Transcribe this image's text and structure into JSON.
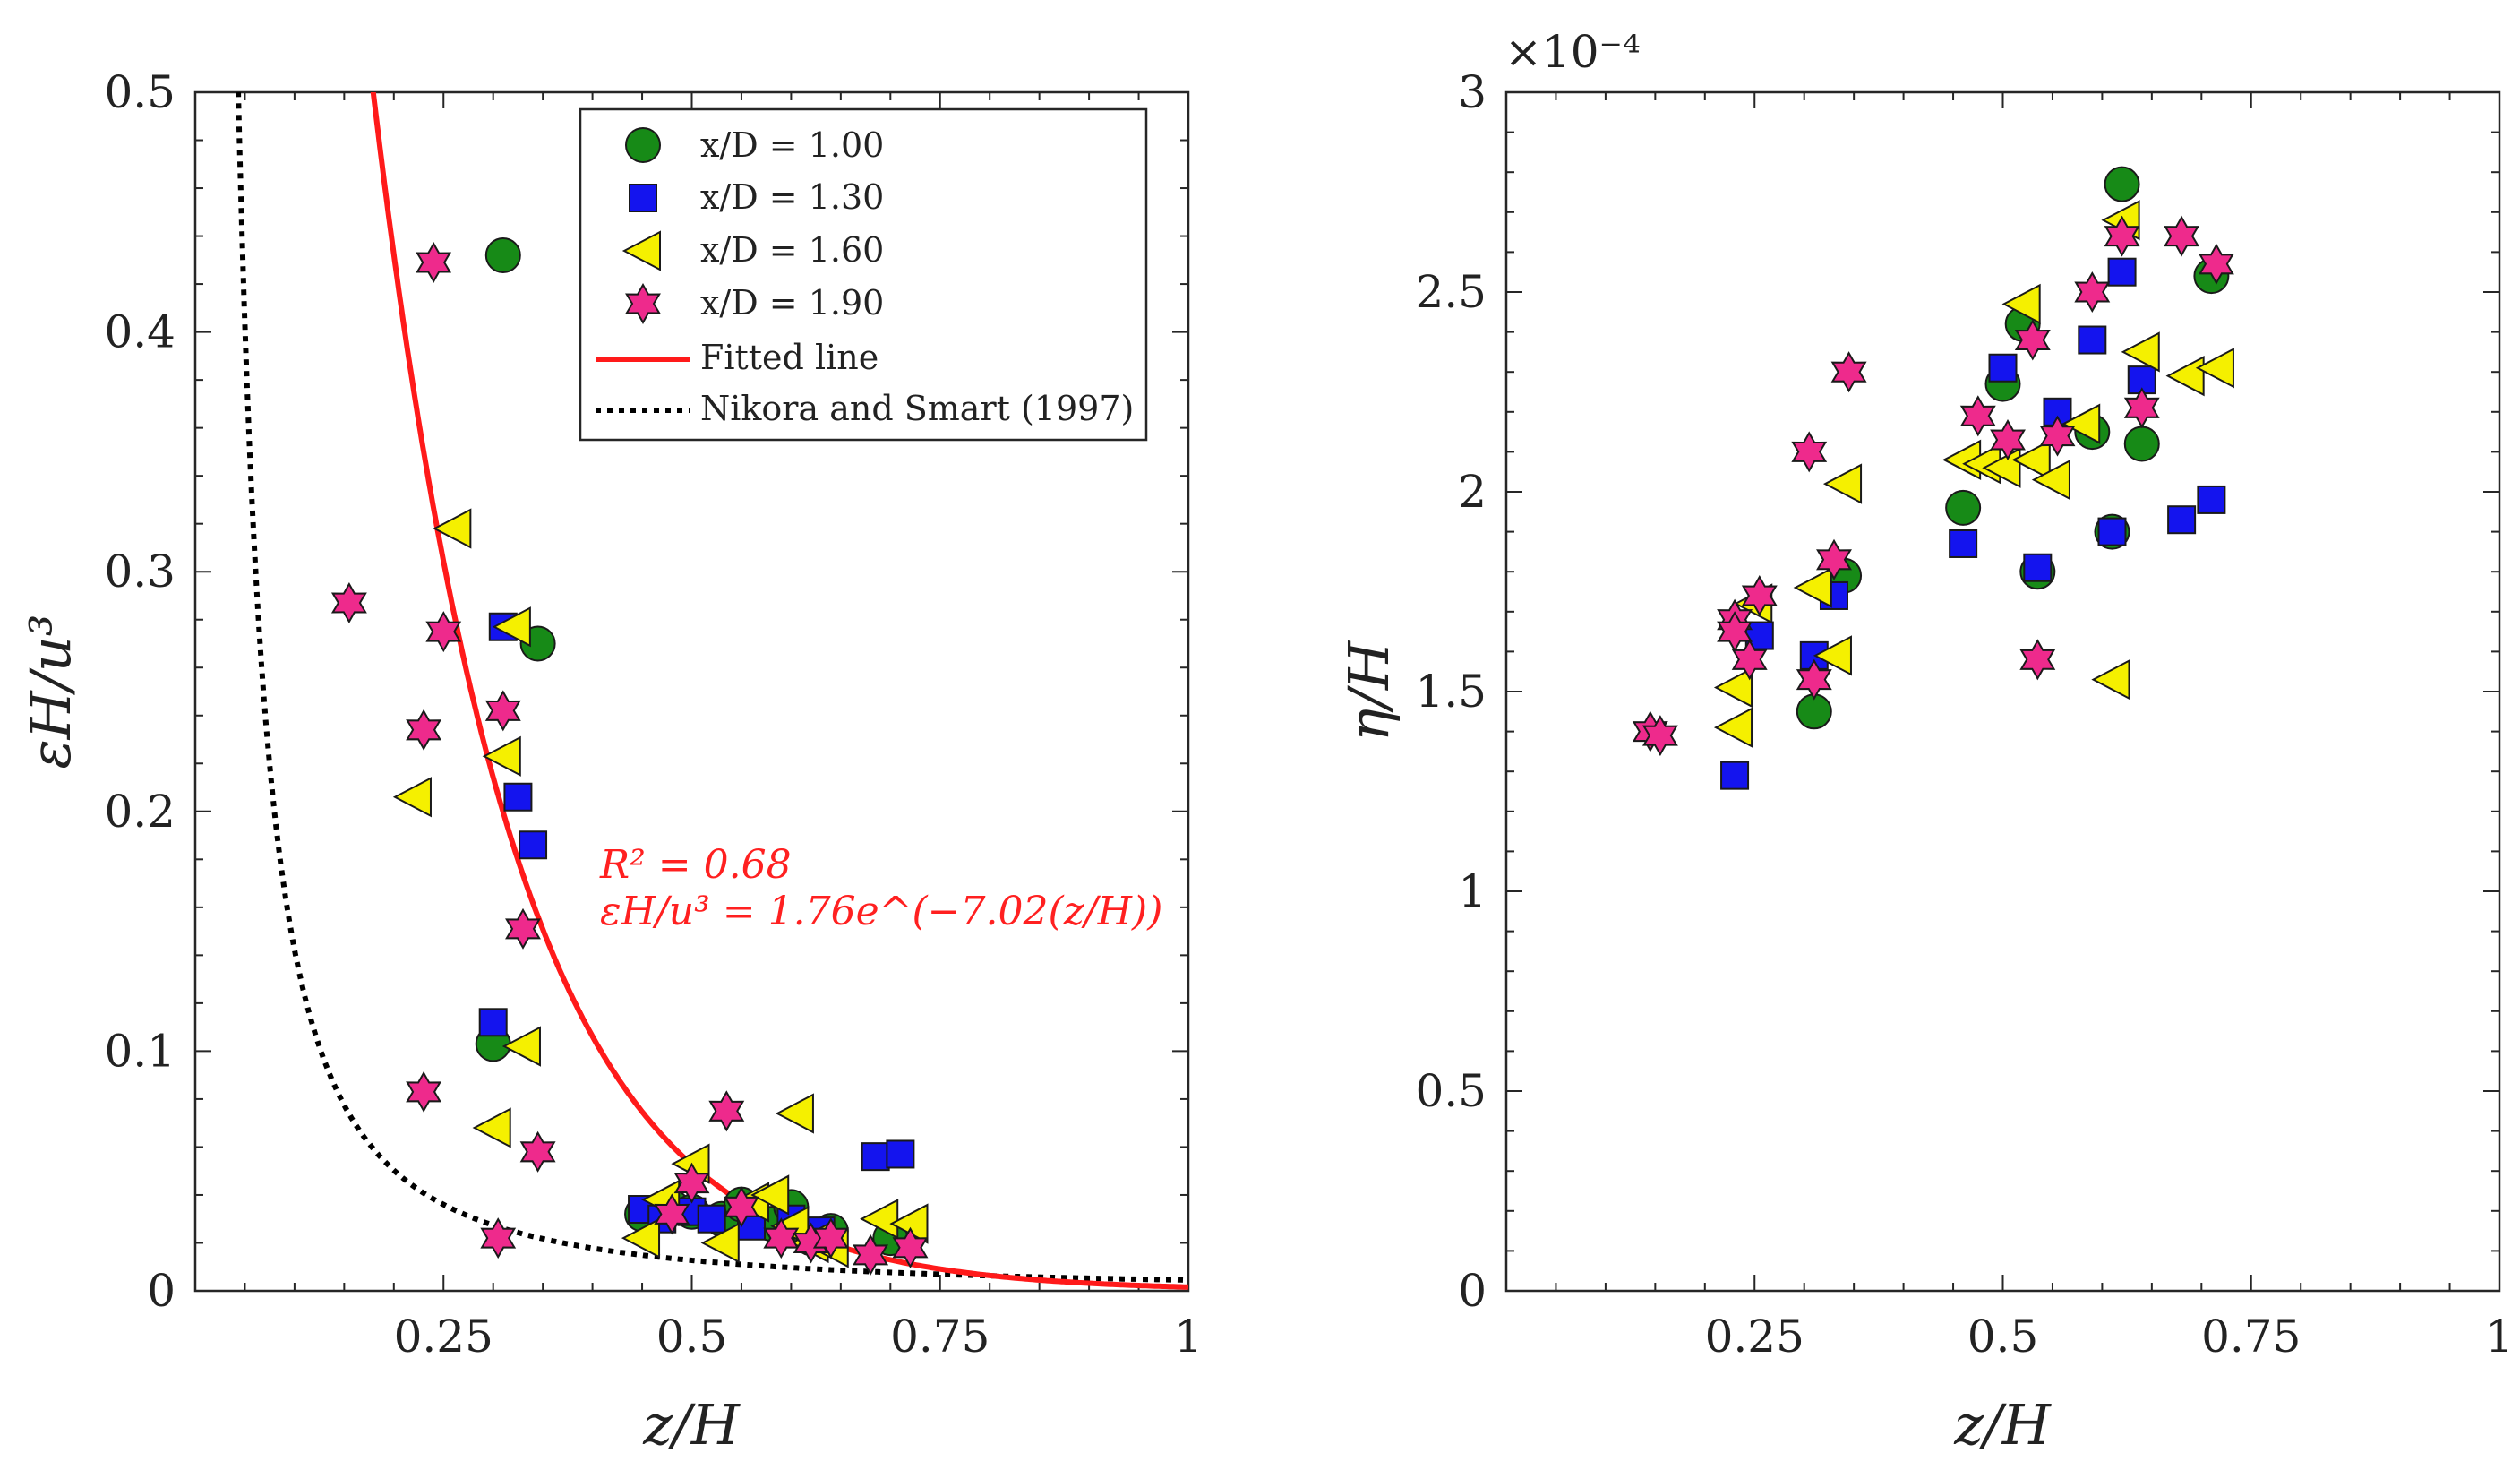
{
  "chart_data": [
    {
      "type": "scatter",
      "panel": "left",
      "title": "",
      "xlabel": "z/H",
      "ylabel": "εH/u³",
      "xlim": [
        0,
        1
      ],
      "ylim": [
        0,
        0.5
      ],
      "xticks": [
        0.25,
        0.5,
        0.75,
        1
      ],
      "xtick_labels": [
        "0.25",
        "0.5",
        "0.75",
        "1"
      ],
      "yticks": [
        0,
        0.1,
        0.2,
        0.3,
        0.4,
        0.5
      ],
      "ytick_labels": [
        "0",
        "0.1",
        "0.2",
        "0.3",
        "0.4",
        "0.5"
      ],
      "legend_position": "top-right",
      "legend": [
        "x/D = 1.00",
        "x/D = 1.30",
        "x/D = 1.60",
        "x/D = 1.90",
        "Fitted line",
        "Nikora and Smart (1997)"
      ],
      "annotation": {
        "r2_label": "R² = 0.68",
        "equation_label": "εH/u³ = 1.76e^(−7.02(z/H))"
      },
      "fit": {
        "a": 1.76,
        "b": -7.02,
        "name": "Fitted line",
        "color": "#ff1a1a"
      },
      "reference": {
        "name": "Nikora and Smart (1997)",
        "coef": 0.0045,
        "power": 1.5,
        "color": "#000000"
      },
      "series": [
        {
          "name": "x/D = 1.00",
          "marker": "circle",
          "color": "#178a17",
          "x": [
            0.31,
            0.345,
            0.3,
            0.45,
            0.48,
            0.5,
            0.53,
            0.55,
            0.58,
            0.6,
            0.62,
            0.64,
            0.7
          ],
          "y": [
            0.432,
            0.27,
            0.103,
            0.032,
            0.035,
            0.033,
            0.03,
            0.036,
            0.028,
            0.035,
            0.022,
            0.025,
            0.022
          ]
        },
        {
          "name": "x/D = 1.30",
          "marker": "square",
          "color": "#1414ee",
          "x": [
            0.31,
            0.325,
            0.34,
            0.3,
            0.45,
            0.47,
            0.5,
            0.52,
            0.56,
            0.6,
            0.63,
            0.685,
            0.71
          ],
          "y": [
            0.277,
            0.206,
            0.186,
            0.112,
            0.034,
            0.03,
            0.033,
            0.03,
            0.027,
            0.03,
            0.025,
            0.056,
            0.057
          ]
        },
        {
          "name": "x/D = 1.60",
          "marker": "triangle-left",
          "color": "#f5f000",
          "x": [
            0.26,
            0.32,
            0.31,
            0.22,
            0.33,
            0.3,
            0.605,
            0.5,
            0.47,
            0.45,
            0.53,
            0.56,
            0.58,
            0.6,
            0.62,
            0.64,
            0.69,
            0.72
          ],
          "y": [
            0.318,
            0.277,
            0.223,
            0.206,
            0.102,
            0.068,
            0.074,
            0.053,
            0.038,
            0.022,
            0.02,
            0.037,
            0.04,
            0.027,
            0.02,
            0.018,
            0.03,
            0.028
          ]
        },
        {
          "name": "x/D = 1.90",
          "marker": "hexagram",
          "color": "#ee2a8c",
          "x": [
            0.24,
            0.155,
            0.25,
            0.31,
            0.23,
            0.33,
            0.23,
            0.345,
            0.305,
            0.535,
            0.5,
            0.48,
            0.55,
            0.59,
            0.62,
            0.64,
            0.68,
            0.72
          ],
          "y": [
            0.429,
            0.287,
            0.275,
            0.242,
            0.234,
            0.151,
            0.083,
            0.058,
            0.022,
            0.075,
            0.045,
            0.032,
            0.035,
            0.022,
            0.02,
            0.022,
            0.015,
            0.018
          ]
        }
      ]
    },
    {
      "type": "scatter",
      "panel": "right",
      "title": "",
      "xlabel": "z/H",
      "ylabel": "η/H",
      "exponent_label": "×10⁻⁴",
      "xlim": [
        0,
        1
      ],
      "ylim": [
        0,
        3
      ],
      "xticks": [
        0.25,
        0.5,
        0.75,
        1
      ],
      "xtick_labels": [
        "0.25",
        "0.5",
        "0.75",
        "1"
      ],
      "yticks": [
        0,
        0.5,
        1,
        1.5,
        2,
        2.5,
        3
      ],
      "ytick_labels": [
        "0",
        "0.5",
        "1",
        "1.5",
        "2",
        "2.5",
        "3"
      ],
      "series": [
        {
          "name": "x/D = 1.00",
          "marker": "circle",
          "color": "#178a17",
          "x": [
            0.31,
            0.34,
            0.46,
            0.5,
            0.52,
            0.535,
            0.59,
            0.61,
            0.62,
            0.64,
            0.71
          ],
          "y": [
            1.45,
            1.79,
            1.96,
            2.27,
            2.42,
            1.8,
            2.15,
            1.9,
            2.77,
            2.12,
            2.54
          ]
        },
        {
          "name": "x/D = 1.30",
          "marker": "square",
          "color": "#1414ee",
          "x": [
            0.23,
            0.255,
            0.31,
            0.33,
            0.46,
            0.5,
            0.535,
            0.555,
            0.59,
            0.61,
            0.62,
            0.64,
            0.68,
            0.71
          ],
          "y": [
            1.29,
            1.64,
            1.59,
            1.74,
            1.87,
            2.31,
            1.81,
            2.2,
            2.38,
            1.9,
            2.55,
            2.28,
            1.93,
            1.98
          ]
        },
        {
          "name": "x/D = 1.60",
          "marker": "triangle-left",
          "color": "#f5f000",
          "x": [
            0.23,
            0.23,
            0.25,
            0.31,
            0.33,
            0.34,
            0.46,
            0.48,
            0.5,
            0.52,
            0.53,
            0.55,
            0.58,
            0.61,
            0.62,
            0.64,
            0.685,
            0.715
          ],
          "y": [
            1.41,
            1.51,
            1.72,
            1.76,
            1.59,
            2.02,
            2.08,
            2.07,
            2.06,
            2.47,
            2.08,
            2.03,
            2.17,
            1.53,
            2.68,
            2.35,
            2.29,
            2.31
          ]
        },
        {
          "name": "x/D = 1.90",
          "marker": "hexagram",
          "color": "#ee2a8c",
          "x": [
            0.145,
            0.155,
            0.23,
            0.23,
            0.245,
            0.255,
            0.305,
            0.31,
            0.33,
            0.345,
            0.475,
            0.505,
            0.53,
            0.535,
            0.555,
            0.59,
            0.62,
            0.64,
            0.68,
            0.715
          ],
          "y": [
            1.4,
            1.39,
            1.68,
            1.65,
            1.58,
            1.74,
            2.1,
            1.53,
            1.83,
            2.3,
            2.19,
            2.13,
            2.38,
            1.58,
            2.14,
            2.5,
            2.64,
            2.21,
            2.64,
            2.57
          ]
        }
      ]
    }
  ]
}
